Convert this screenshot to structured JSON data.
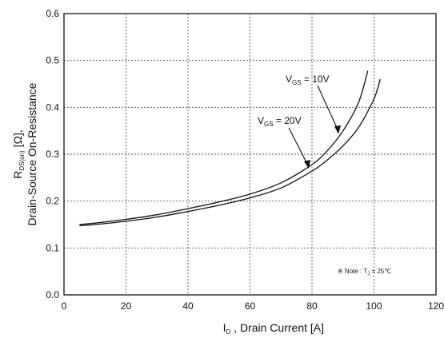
{
  "chart_data": {
    "type": "line",
    "xlabel": {
      "main": "I",
      "sub": "D",
      "rest": " , Drain Current  [A]"
    },
    "ylabel": {
      "line1_main": "R",
      "line1_sub": "DS(on)",
      "line1_rest": " [Ω],",
      "line2": "Drain-Source On-Resistance"
    },
    "xlim": [
      0,
      120
    ],
    "ylim": [
      0.0,
      0.6
    ],
    "xticks": [
      0,
      20,
      40,
      60,
      80,
      100,
      120
    ],
    "xtick_labels": [
      "0",
      "20",
      "40",
      "60",
      "80",
      "100",
      "120"
    ],
    "yticks": [
      0.0,
      0.1,
      0.2,
      0.3,
      0.4,
      0.5,
      0.6
    ],
    "ytick_labels": [
      "0.0",
      "0.1",
      "0.2",
      "0.3",
      "0.4",
      "0.5",
      "0.6"
    ],
    "grid": true,
    "series": [
      {
        "x": [
          5,
          10,
          20,
          30,
          40,
          50,
          60,
          70,
          80,
          85,
          90,
          95,
          98
        ],
        "y": [
          0.15,
          0.153,
          0.161,
          0.171,
          0.184,
          0.198,
          0.215,
          0.239,
          0.278,
          0.308,
          0.35,
          0.41,
          0.478
        ]
      },
      {
        "x": [
          5,
          10,
          20,
          30,
          40,
          50,
          60,
          70,
          80,
          85,
          90,
          95,
          100,
          102
        ],
        "y": [
          0.148,
          0.15,
          0.157,
          0.166,
          0.178,
          0.191,
          0.207,
          0.228,
          0.264,
          0.288,
          0.318,
          0.357,
          0.418,
          0.46
        ]
      }
    ],
    "annotations": [
      {
        "main": "V",
        "sub": "GS",
        "rest": " = 10V"
      },
      {
        "main": "V",
        "sub": "GS",
        "rest": " = 20V"
      }
    ],
    "note": {
      "main": "※ Note : T",
      "sub": "J",
      "rest": " = 25℃"
    }
  }
}
